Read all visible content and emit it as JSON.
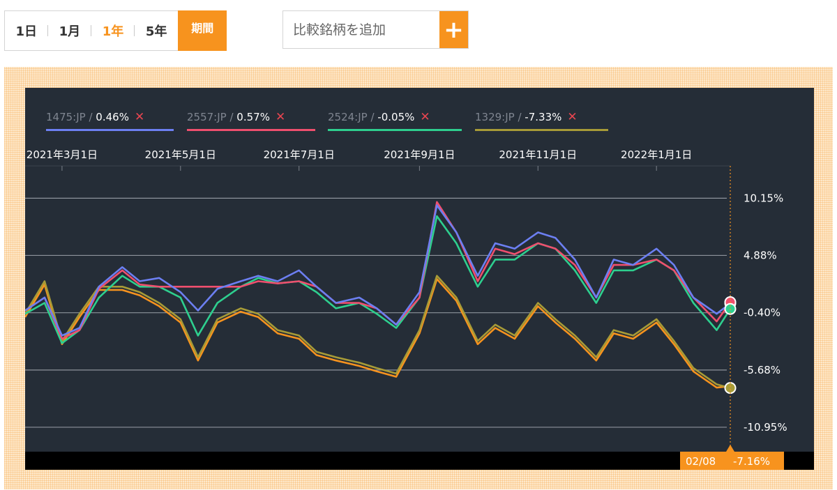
{
  "range_buttons": [
    {
      "label": "1日",
      "active": false
    },
    {
      "label": "1月",
      "active": false
    },
    {
      "label": "1年",
      "active": true
    },
    {
      "label": "5年",
      "active": false
    }
  ],
  "period_label": "期間",
  "compare": {
    "placeholder": "比較銘柄を追加",
    "add_label": "+"
  },
  "colors": {
    "accent": "#f7931e",
    "chart_bg": "#252d37"
  },
  "legend": [
    {
      "code": "1475:JP",
      "value": "0.46%",
      "color": "#6c7ff2"
    },
    {
      "code": "2557:JP",
      "value": "0.57%",
      "color": "#ef4f6e"
    },
    {
      "code": "2524:JP",
      "value": "-0.05%",
      "color": "#2ecf8f"
    },
    {
      "code": "1329:JP",
      "value": "-7.33%",
      "color": "#a79b37"
    }
  ],
  "cursor_label": {
    "date": "02/08",
    "value": "-7.16%"
  },
  "chart_data": {
    "type": "line",
    "x_tick_labels": [
      "2021年3月1日",
      "2021年5月1日",
      "2021年7月1日",
      "2021年9月1日",
      "2021年11月1日",
      "2022年1月1日"
    ],
    "y_tick_labels": [
      "10.15%",
      "4.88%",
      "-0.40%",
      "-5.68%",
      "-10.95%"
    ],
    "y_ticks": [
      10.15,
      4.88,
      -0.4,
      -5.68,
      -10.95
    ],
    "ylim": [
      -13.2,
      12.1
    ],
    "grid": true,
    "x_points": [
      "2021-02-10",
      "2021-02-20",
      "2021-03-01",
      "2021-03-10",
      "2021-03-20",
      "2021-04-01",
      "2021-04-10",
      "2021-04-20",
      "2021-05-01",
      "2021-05-10",
      "2021-05-20",
      "2021-06-01",
      "2021-06-10",
      "2021-06-20",
      "2021-07-01",
      "2021-07-10",
      "2021-07-20",
      "2021-08-01",
      "2021-08-10",
      "2021-08-20",
      "2021-09-01",
      "2021-09-10",
      "2021-09-20",
      "2021-10-01",
      "2021-10-10",
      "2021-10-20",
      "2021-11-01",
      "2021-11-10",
      "2021-11-20",
      "2021-12-01",
      "2021-12-10",
      "2021-12-20",
      "2022-01-01",
      "2022-01-10",
      "2022-01-20",
      "2022-02-01",
      "2022-02-08"
    ],
    "series": [
      {
        "name": "1475:JP",
        "color": "#6c7ff2",
        "values": [
          -0.2,
          1.0,
          -2.5,
          -1.8,
          2.0,
          3.8,
          2.5,
          2.8,
          1.5,
          -0.2,
          1.8,
          2.5,
          3.0,
          2.5,
          3.5,
          2.0,
          0.5,
          1.0,
          0.0,
          -1.5,
          1.5,
          9.5,
          7.0,
          3.0,
          6.0,
          5.5,
          7.0,
          6.5,
          4.5,
          1.0,
          4.5,
          4.0,
          5.5,
          4.0,
          1.0,
          -0.5,
          0.46
        ]
      },
      {
        "name": "2557:JP",
        "color": "#ef4f6e",
        "values": [
          -0.2,
          1.0,
          -2.8,
          -2.0,
          1.8,
          3.5,
          2.2,
          2.0,
          2.0,
          2.0,
          2.0,
          2.0,
          2.5,
          2.3,
          2.5,
          2.0,
          0.5,
          0.5,
          0.0,
          -1.5,
          1.0,
          9.8,
          7.0,
          2.5,
          5.5,
          5.0,
          6.0,
          5.5,
          4.0,
          1.0,
          4.0,
          4.0,
          4.5,
          3.5,
          1.0,
          -1.2,
          0.57
        ]
      },
      {
        "name": "2524:JP",
        "color": "#2ecf8f",
        "values": [
          -0.5,
          0.5,
          -3.2,
          -2.0,
          1.0,
          3.0,
          2.0,
          2.0,
          1.0,
          -2.5,
          0.5,
          2.0,
          2.8,
          2.3,
          2.5,
          1.5,
          0.0,
          0.5,
          -0.5,
          -1.8,
          1.0,
          8.5,
          6.0,
          2.0,
          4.5,
          4.5,
          6.0,
          5.5,
          3.5,
          0.5,
          3.5,
          3.5,
          4.5,
          3.5,
          0.5,
          -2.0,
          -0.05
        ]
      },
      {
        "name": "1329:JP",
        "color": "#a79b37",
        "values": [
          -0.5,
          2.5,
          -3.0,
          -0.5,
          2.0,
          2.0,
          1.5,
          0.5,
          -1.0,
          -4.5,
          -1.0,
          0.0,
          -0.5,
          -2.0,
          -2.5,
          -4.0,
          -4.5,
          -5.0,
          -5.5,
          -6.0,
          -2.0,
          3.0,
          1.0,
          -3.0,
          -1.5,
          -2.5,
          0.5,
          -1.0,
          -2.5,
          -4.5,
          -2.0,
          -2.5,
          -1.0,
          -3.0,
          -5.5,
          -7.0,
          -7.33
        ]
      },
      {
        "name": "1329:JP",
        "color": "#f7931e",
        "values": [
          -0.8,
          2.2,
          -3.3,
          -0.8,
          1.7,
          1.7,
          1.2,
          0.2,
          -1.3,
          -4.8,
          -1.3,
          -0.3,
          -0.8,
          -2.3,
          -2.8,
          -4.3,
          -4.8,
          -5.3,
          -5.8,
          -6.3,
          -2.3,
          2.7,
          0.7,
          -3.3,
          -1.8,
          -2.8,
          0.2,
          -1.3,
          -2.8,
          -4.8,
          -2.3,
          -2.8,
          -1.3,
          -3.3,
          -5.8,
          -7.3,
          -7.16
        ]
      }
    ]
  }
}
